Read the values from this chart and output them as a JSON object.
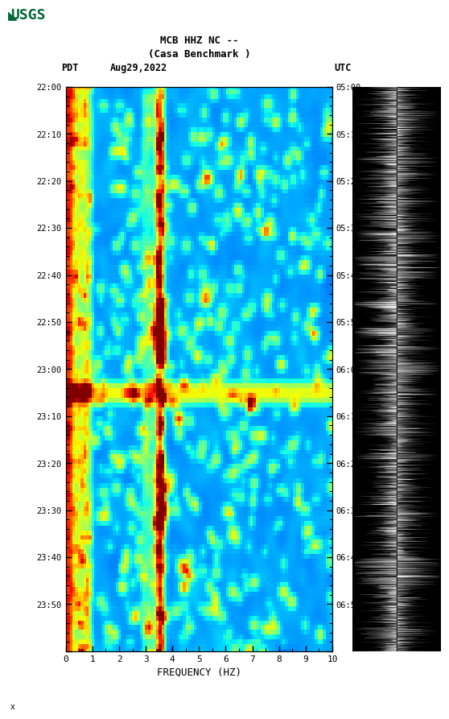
{
  "title_line1": "MCB HHZ NC --",
  "title_line2": "(Casa Benchmark )",
  "left_label": "PDT",
  "date_label": "Aug29,2022",
  "right_label": "UTC",
  "ylabel_left_times": [
    "22:00",
    "22:10",
    "22:20",
    "22:30",
    "22:40",
    "22:50",
    "23:00",
    "23:10",
    "23:20",
    "23:30",
    "23:40",
    "23:50",
    ""
  ],
  "ylabel_right_times": [
    "05:00",
    "05:10",
    "05:20",
    "05:30",
    "05:40",
    "05:50",
    "06:00",
    "06:10",
    "06:20",
    "06:30",
    "06:40",
    "06:50",
    ""
  ],
  "xlabel": "FREQUENCY (HZ)",
  "xticks": [
    0,
    1,
    2,
    3,
    4,
    5,
    6,
    7,
    8,
    9,
    10
  ],
  "freq_min": 0,
  "freq_max": 10,
  "time_steps": 120,
  "freq_steps": 100,
  "background_color": "#ffffff",
  "colormap": "jet",
  "figsize": [
    5.52,
    8.93
  ],
  "dpi": 100,
  "usgs_color": "#006633"
}
